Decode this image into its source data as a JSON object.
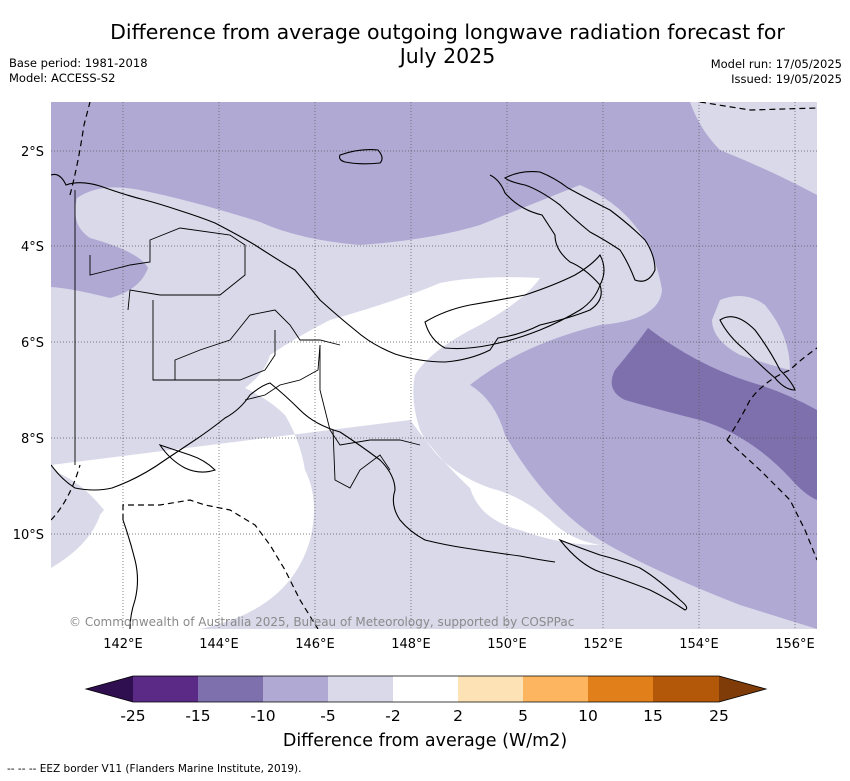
{
  "header": {
    "title_line1": "Difference from average outgoing longwave radiation forecast for",
    "title_line2": "July 2025",
    "base_period": "Base period: 1981-2018",
    "model": "Model: ACCESS-S2",
    "model_run": "Model run: 17/05/2025",
    "issued": "Issued: 19/05/2025"
  },
  "map": {
    "x_ticks": [
      "142°E",
      "144°E",
      "146°E",
      "148°E",
      "150°E",
      "152°E",
      "154°E",
      "156°E"
    ],
    "y_ticks": [
      "2°S",
      "4°S",
      "6°S",
      "8°S",
      "10°S"
    ],
    "copyright": "© Commonwealth of Australia 2025, Bureau of Meteorology, supported by COSPPac"
  },
  "colorbar": {
    "tick_labels": [
      "-25",
      "-15",
      "-10",
      "-5",
      "-2",
      "2",
      "5",
      "10",
      "15",
      "25"
    ],
    "colors": [
      "#2f0f4f",
      "#5b2a87",
      "#7e70ad",
      "#b0a9d3",
      "#d9d9ea",
      "#ffffff",
      "#fde2b5",
      "#fdb65f",
      "#e17f1b",
      "#b35808",
      "#7f3b08"
    ],
    "label": "Difference from average (W/m2)"
  },
  "footnote": "--  --  -- EEZ border V11 (Flanders Marine Institute, 2019).",
  "fill_colors": {
    "minus_2_to_2": "#ffffff",
    "minus_5_to_minus_2": "#d9d9ea",
    "minus_10_to_minus_5": "#b0a9d3",
    "minus_15_to_minus_10": "#7e70ad"
  }
}
